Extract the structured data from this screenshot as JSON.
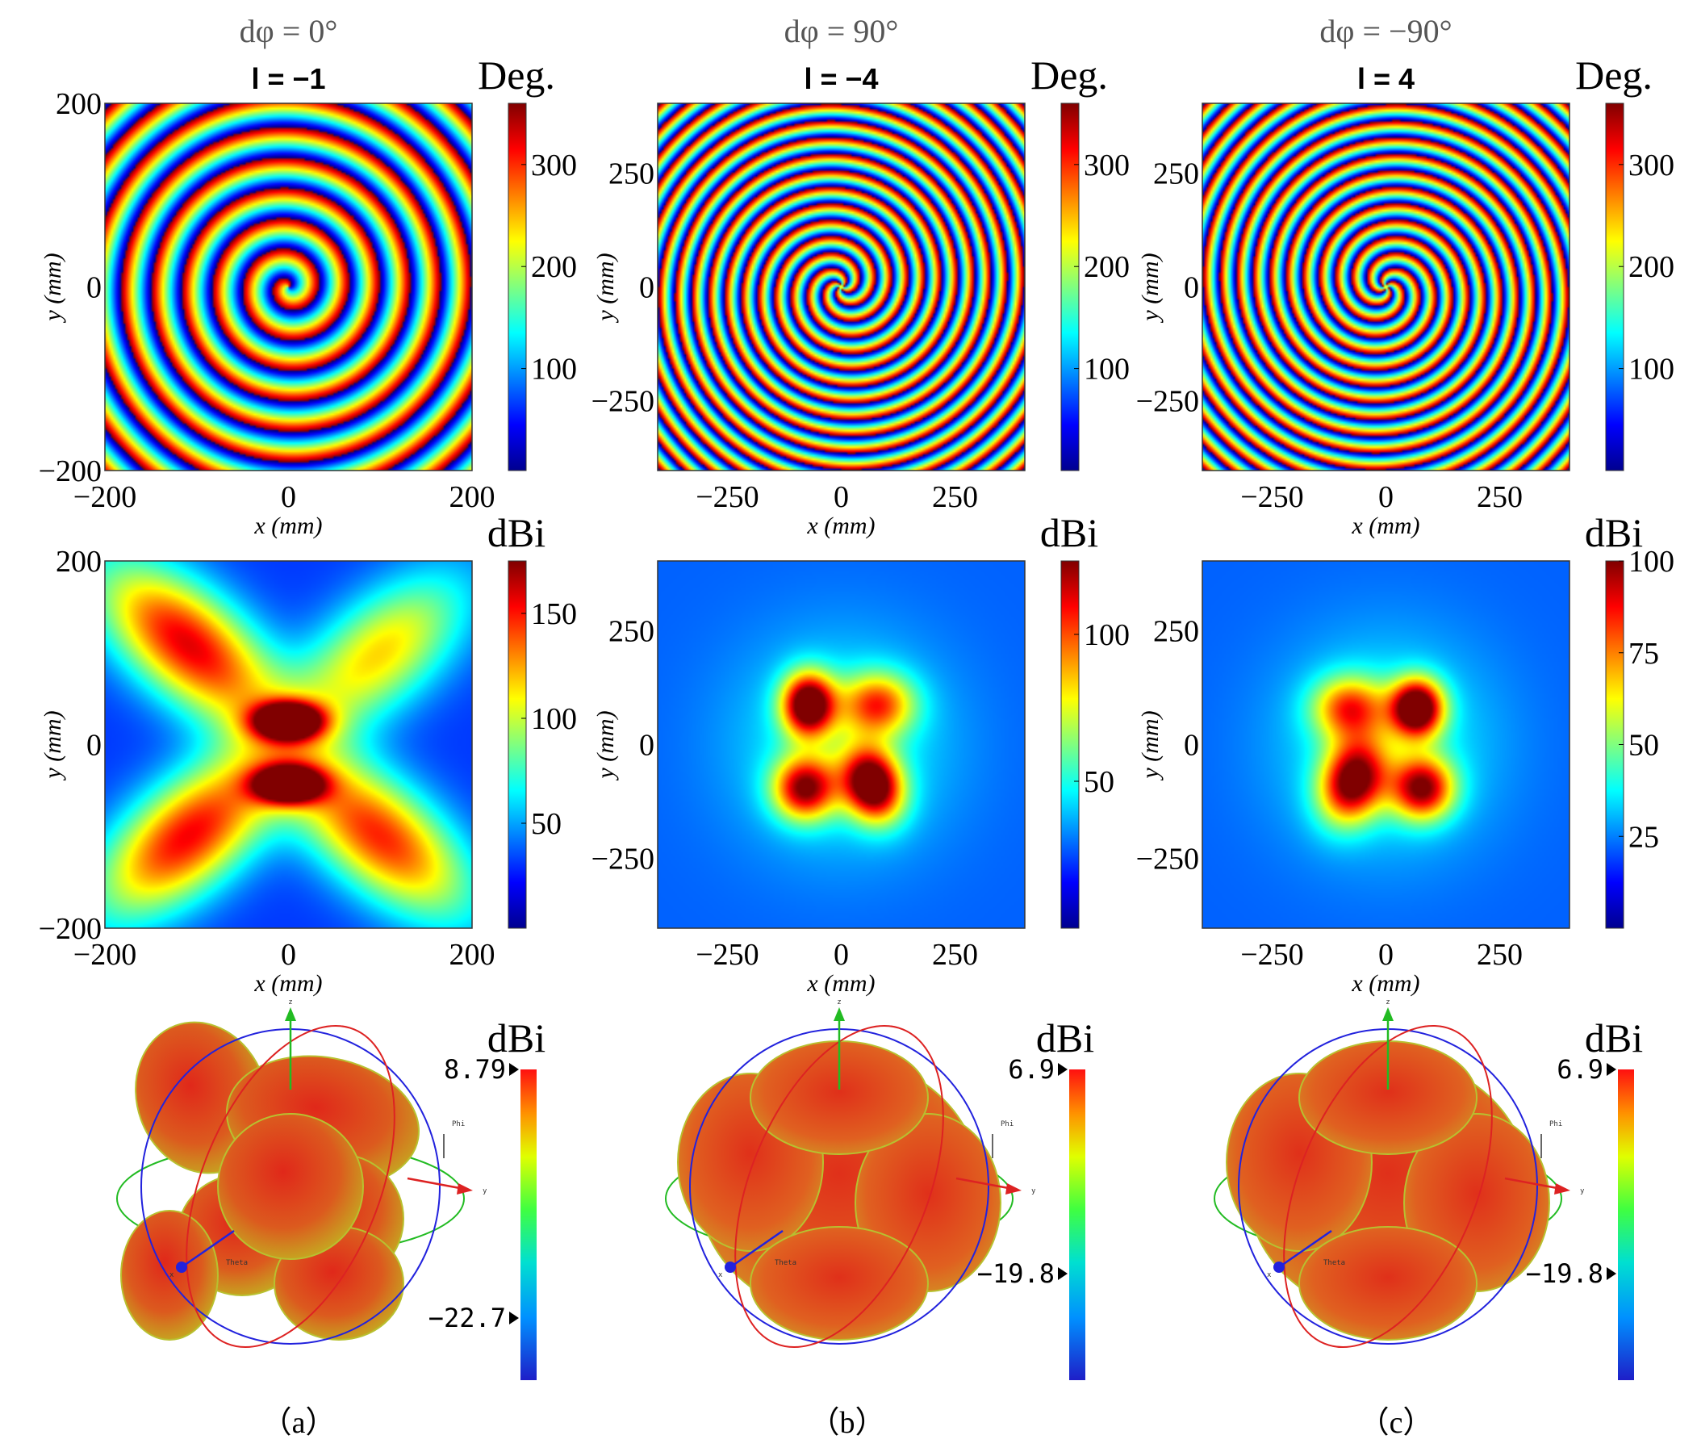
{
  "chart_data": [
    {
      "type": "heatmap",
      "panel": "a",
      "row": "phase",
      "title": "dφ = 0°",
      "subtitle": "l = −1",
      "unit_label": "Deg.",
      "xlabel": "x (mm)",
      "ylabel": "y (mm)",
      "xlim": [
        -210,
        210
      ],
      "ylim": [
        -210,
        210
      ],
      "xticks": [
        "−200",
        "0",
        "200"
      ],
      "yticks": [
        "200",
        "0",
        "−200"
      ],
      "colorbar": {
        "min": 0,
        "max": 360,
        "ticks": [
          "300",
          "200",
          "100"
        ],
        "tick_values": [
          300,
          200,
          100
        ]
      },
      "colormap": "jet",
      "pattern": {
        "kind": "phase",
        "charge": -1,
        "rings": 6
      }
    },
    {
      "type": "heatmap",
      "panel": "b",
      "row": "phase",
      "title": "dφ = 90°",
      "subtitle": "l = −4",
      "unit_label": "Deg.",
      "xlabel": "x (mm)",
      "ylabel": "y (mm)",
      "xlim": [
        -400,
        400
      ],
      "ylim": [
        -400,
        400
      ],
      "xticks": [
        "−250",
        "0",
        "250"
      ],
      "yticks": [
        "250",
        "0",
        "−250"
      ],
      "colorbar": {
        "min": 0,
        "max": 360,
        "ticks": [
          "300",
          "200",
          "100"
        ],
        "tick_values": [
          300,
          200,
          100
        ]
      },
      "colormap": "jet",
      "pattern": {
        "kind": "phase",
        "charge": -4,
        "rings": 11
      }
    },
    {
      "type": "heatmap",
      "panel": "c",
      "row": "phase",
      "title": "dφ = −90°",
      "subtitle": "l = 4",
      "unit_label": "Deg.",
      "xlabel": "x (mm)",
      "ylabel": "y (mm)",
      "xlim": [
        -400,
        400
      ],
      "ylim": [
        -400,
        400
      ],
      "xticks": [
        "−250",
        "0",
        "250"
      ],
      "yticks": [
        "250",
        "0",
        "−250"
      ],
      "colorbar": {
        "min": 0,
        "max": 360,
        "ticks": [
          "300",
          "200",
          "100"
        ],
        "tick_values": [
          300,
          200,
          100
        ]
      },
      "colormap": "jet",
      "pattern": {
        "kind": "phase",
        "charge": 4,
        "rings": 11
      }
    },
    {
      "type": "heatmap",
      "panel": "a",
      "row": "magnitude",
      "unit_label": "dBi",
      "xlabel": "x (mm)",
      "ylabel": "y (mm)",
      "xlim": [
        -210,
        210
      ],
      "ylim": [
        -210,
        210
      ],
      "xticks": [
        "−200",
        "0",
        "200"
      ],
      "yticks": [
        "200",
        "0",
        "−200"
      ],
      "colorbar": {
        "min": 0,
        "max": 175,
        "ticks": [
          "150",
          "100",
          "50"
        ],
        "tick_values": [
          150,
          100,
          50
        ]
      },
      "colormap": "jet",
      "pattern": {
        "kind": "lobes",
        "base": 0.18,
        "lobes": [
          {
            "x": -0.55,
            "y": 0.55,
            "sx": 0.42,
            "sy": 0.2,
            "angle": -40,
            "amp": 0.72
          },
          {
            "x": 0.5,
            "y": 0.5,
            "sx": 0.4,
            "sy": 0.2,
            "angle": 40,
            "amp": 0.48
          },
          {
            "x": -0.55,
            "y": -0.5,
            "sx": 0.42,
            "sy": 0.2,
            "angle": 40,
            "amp": 0.7
          },
          {
            "x": 0.5,
            "y": -0.5,
            "sx": 0.42,
            "sy": 0.2,
            "angle": -40,
            "amp": 0.66
          },
          {
            "x": 0.0,
            "y": 0.13,
            "sx": 0.13,
            "sy": 0.07,
            "angle": 0,
            "amp": 0.95
          },
          {
            "x": 0.0,
            "y": -0.22,
            "sx": 0.13,
            "sy": 0.07,
            "angle": 0,
            "amp": 0.93
          }
        ]
      }
    },
    {
      "type": "heatmap",
      "panel": "b",
      "row": "magnitude",
      "unit_label": "dBi",
      "xlabel": "x (mm)",
      "ylabel": "y (mm)",
      "xlim": [
        -400,
        400
      ],
      "ylim": [
        -400,
        400
      ],
      "xticks": [
        "−250",
        "0",
        "250"
      ],
      "yticks": [
        "250",
        "0",
        "−250"
      ],
      "colorbar": {
        "min": 0,
        "max": 125,
        "ticks": [
          "100",
          "50"
        ],
        "tick_values": [
          100,
          50
        ]
      },
      "colormap": "jet",
      "pattern": {
        "kind": "lobes",
        "base": 0.22,
        "lobes": [
          {
            "x": -0.18,
            "y": 0.22,
            "sx": 0.1,
            "sy": 0.12,
            "angle": 0,
            "amp": 0.85
          },
          {
            "x": 0.17,
            "y": -0.22,
            "sx": 0.11,
            "sy": 0.14,
            "angle": 20,
            "amp": 0.85
          },
          {
            "x": -0.2,
            "y": -0.24,
            "sx": 0.12,
            "sy": 0.12,
            "angle": 0,
            "amp": 0.68
          },
          {
            "x": 0.2,
            "y": 0.22,
            "sx": 0.14,
            "sy": 0.12,
            "angle": 0,
            "amp": 0.5
          },
          {
            "x": 0.0,
            "y": 0.0,
            "sx": 0.42,
            "sy": 0.42,
            "angle": 0,
            "amp": 0.18
          }
        ]
      }
    },
    {
      "type": "heatmap",
      "panel": "c",
      "row": "magnitude",
      "unit_label": "dBi",
      "xlabel": "x (mm)",
      "ylabel": "y (mm)",
      "xlim": [
        -400,
        400
      ],
      "ylim": [
        -400,
        400
      ],
      "xticks": [
        "−250",
        "0",
        "250"
      ],
      "yticks": [
        "250",
        "0",
        "−250"
      ],
      "colorbar": {
        "min": 0,
        "max": 100,
        "ticks": [
          "100",
          "75",
          "50",
          "25"
        ],
        "tick_values": [
          100,
          75,
          50,
          25
        ]
      },
      "colormap": "jet",
      "pattern": {
        "kind": "lobes",
        "base": 0.22,
        "lobes": [
          {
            "x": 0.17,
            "y": 0.2,
            "sx": 0.1,
            "sy": 0.11,
            "angle": 0,
            "amp": 0.88
          },
          {
            "x": -0.18,
            "y": -0.2,
            "sx": 0.12,
            "sy": 0.16,
            "angle": -20,
            "amp": 0.75
          },
          {
            "x": 0.2,
            "y": -0.24,
            "sx": 0.12,
            "sy": 0.12,
            "angle": 0,
            "amp": 0.68
          },
          {
            "x": -0.2,
            "y": 0.2,
            "sx": 0.14,
            "sy": 0.12,
            "angle": 0,
            "amp": 0.5
          },
          {
            "x": 0.0,
            "y": 0.0,
            "sx": 0.42,
            "sy": 0.42,
            "angle": 0,
            "amp": 0.18
          }
        ]
      }
    },
    {
      "type": "3d-radiation-pattern",
      "panel": "a",
      "unit_label": "dBi",
      "colorbar": {
        "max_label": "8.79",
        "min_label": "−22.7",
        "max": 8.79,
        "min": -22.7
      },
      "axis_labels": {
        "x": "x",
        "y": "y",
        "z": "z",
        "phi": "Phi",
        "theta": "Theta"
      },
      "caption": "（a）"
    },
    {
      "type": "3d-radiation-pattern",
      "panel": "b",
      "unit_label": "dBi",
      "colorbar": {
        "max_label": "6.9",
        "min_label": "−19.8",
        "max": 6.9,
        "min": -19.8
      },
      "axis_labels": {
        "x": "x",
        "y": "y",
        "z": "z",
        "phi": "Phi",
        "theta": "Theta"
      },
      "caption": "（b）"
    },
    {
      "type": "3d-radiation-pattern",
      "panel": "c",
      "unit_label": "dBi",
      "colorbar": {
        "max_label": "6.9",
        "min_label": "−19.8",
        "max": 6.9,
        "min": -19.8
      },
      "axis_labels": {
        "x": "x",
        "y": "y",
        "z": "z",
        "phi": "Phi",
        "theta": "Theta"
      },
      "caption": "（c）"
    }
  ]
}
